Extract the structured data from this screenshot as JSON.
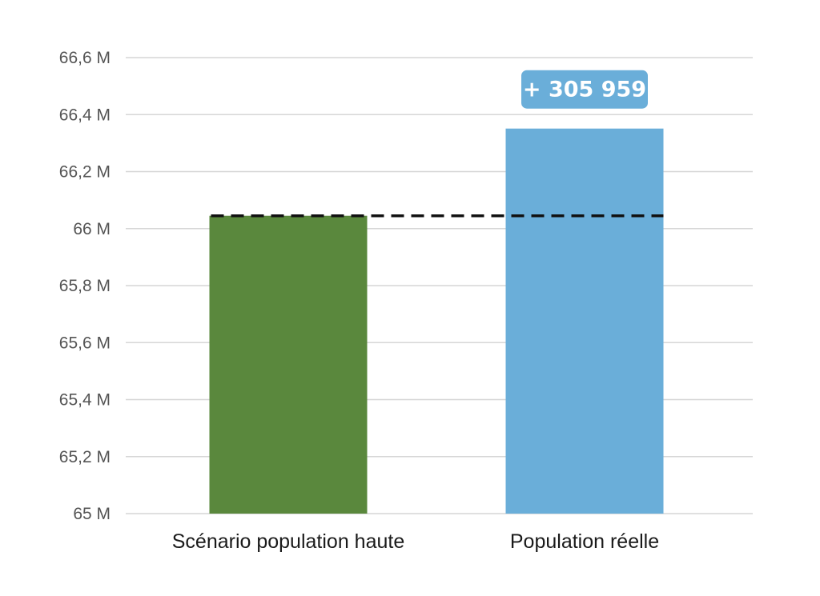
{
  "chart_data": {
    "type": "bar",
    "categories": [
      "Scénario population haute",
      "Population réelle"
    ],
    "values": [
      66.045,
      66.351
    ],
    "unit_suffix": " M",
    "ylim": [
      65,
      66.6
    ],
    "y_ticks": [
      65,
      65.2,
      65.4,
      65.6,
      65.8,
      66,
      66.2,
      66.4,
      66.6
    ],
    "y_tick_labels": [
      "65 M",
      "65,2 M",
      "65,4 M",
      "65,6 M",
      "65,8 M",
      "66 M",
      "66,2 M",
      "66,4 M",
      "66,6 M"
    ],
    "bar_colors": [
      "#5a883d",
      "#6aaed9"
    ],
    "reference_line": {
      "value": 66.045,
      "style": "dashed",
      "color": "#111111"
    },
    "difference_label": "+ 305 959",
    "badge_color": "#6aaed9",
    "grid": true,
    "grid_color": "#d6d6d6",
    "legend": "none"
  }
}
